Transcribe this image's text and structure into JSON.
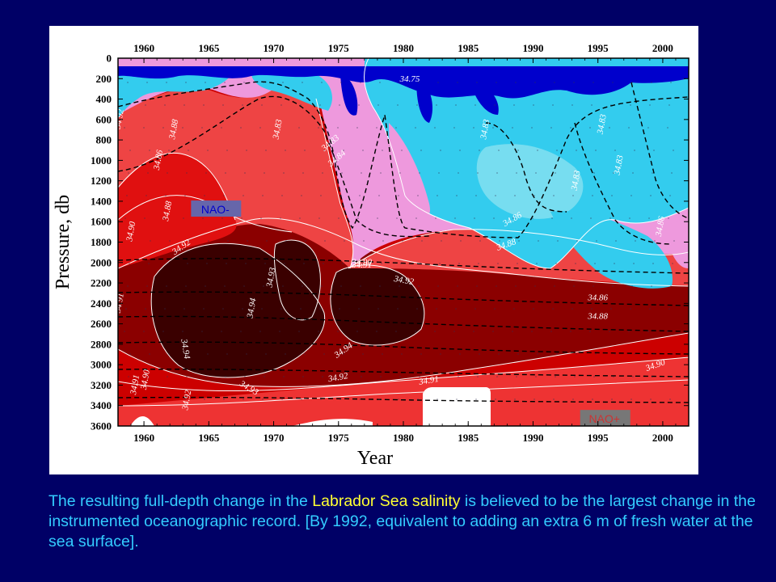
{
  "chart_data": {
    "type": "heatmap",
    "xlabel": "Year",
    "ylabel": "Pressure, db",
    "x_ticks": [
      1960,
      1965,
      1970,
      1975,
      1980,
      1985,
      1990,
      1995,
      2000
    ],
    "y_ticks": [
      0,
      200,
      400,
      600,
      800,
      1000,
      1200,
      1400,
      1600,
      1800,
      2000,
      2200,
      2400,
      2600,
      2800,
      3000,
      3200,
      3400,
      3600
    ],
    "xlim": [
      1958,
      2002
    ],
    "ylim": [
      3600,
      0
    ],
    "y_inverted": true,
    "contour_labels": [
      {
        "value": "34.92",
        "x": 1958.3,
        "y": 600,
        "rotate": -80
      },
      {
        "value": "34.88",
        "x": 1962.5,
        "y": 700,
        "rotate": -80
      },
      {
        "value": "34.86",
        "x": 1961.3,
        "y": 1000,
        "rotate": -80
      },
      {
        "value": "34.88",
        "x": 1962.0,
        "y": 1500,
        "rotate": -80
      },
      {
        "value": "34.90",
        "x": 1959.2,
        "y": 1700,
        "rotate": -80
      },
      {
        "value": "34.92",
        "x": 1963.0,
        "y": 1870,
        "rotate": -35
      },
      {
        "value": "34.93",
        "x": 1970.0,
        "y": 2150,
        "rotate": -80
      },
      {
        "value": "34.94",
        "x": 1968.5,
        "y": 2450,
        "rotate": -80
      },
      {
        "value": "34.91",
        "x": 1958.3,
        "y": 2400,
        "rotate": -80
      },
      {
        "value": "34.94",
        "x": 1963.0,
        "y": 2850,
        "rotate": 80
      },
      {
        "value": "34.94",
        "x": 1975.5,
        "y": 2880,
        "rotate": -35
      },
      {
        "value": "34.92",
        "x": 1980.0,
        "y": 2200,
        "rotate": 10
      },
      {
        "value": "34.91",
        "x": 1976.8,
        "y": 2050,
        "rotate": 0
      },
      {
        "value": "34.90",
        "x": 1976.8,
        "y": 2020,
        "rotate": 0
      },
      {
        "value": "34.93",
        "x": 1968.0,
        "y": 3250,
        "rotate": 30
      },
      {
        "value": "34.92",
        "x": 1975.0,
        "y": 3150,
        "rotate": -10
      },
      {
        "value": "34.91",
        "x": 1959.5,
        "y": 3200,
        "rotate": -80
      },
      {
        "value": "34.90",
        "x": 1960.3,
        "y": 3150,
        "rotate": -80
      },
      {
        "value": "34.92",
        "x": 1963.5,
        "y": 3350,
        "rotate": -80
      },
      {
        "value": "34.91",
        "x": 1982.0,
        "y": 3180,
        "rotate": -10
      },
      {
        "value": "34.90",
        "x": 1999.5,
        "y": 3030,
        "rotate": -20
      },
      {
        "value": "34.88",
        "x": 1988.0,
        "y": 1850,
        "rotate": -20
      },
      {
        "value": "34.86",
        "x": 1988.5,
        "y": 1600,
        "rotate": -30
      },
      {
        "value": "34.88",
        "x": 1995.0,
        "y": 2550,
        "rotate": 0
      },
      {
        "value": "34.86",
        "x": 1995.0,
        "y": 2370,
        "rotate": 0
      },
      {
        "value": "34.83",
        "x": 1993.5,
        "y": 1200,
        "rotate": -80
      },
      {
        "value": "34.83",
        "x": 1995.5,
        "y": 650,
        "rotate": -80
      },
      {
        "value": "34.83",
        "x": 1996.8,
        "y": 1050,
        "rotate": -80
      },
      {
        "value": "34.86",
        "x": 2000.0,
        "y": 1650,
        "rotate": -80
      },
      {
        "value": "34.75",
        "x": 1980.5,
        "y": 230,
        "rotate": 0
      },
      {
        "value": "34.83",
        "x": 1986.5,
        "y": 700,
        "rotate": -80
      },
      {
        "value": "34.83",
        "x": 1970.5,
        "y": 700,
        "rotate": -80
      },
      {
        "value": "34.83",
        "x": 1974.5,
        "y": 850,
        "rotate": -40
      },
      {
        "value": "34.84",
        "x": 1975.0,
        "y": 1000,
        "rotate": -40
      }
    ],
    "annotations": [
      {
        "text": "NAO-",
        "x": 1965.5,
        "y": 1480,
        "box": "#6666aa",
        "color": "#0000cc"
      },
      {
        "text": "NAO+",
        "x": 1995.5,
        "y": 3530,
        "box": "#777777",
        "color": "#cc3333"
      }
    ],
    "colors": {
      "lowest": "#0000cc",
      "low": "#33ccee",
      "mid_low": "#ee99dd",
      "mid": "#ee4444",
      "high": "#cc0000",
      "higher": "#8b0000",
      "highest": "#3a0000",
      "missing": "#ffffff"
    }
  },
  "caption": {
    "before": "The resulting full-depth change in the ",
    "highlight": "Labrador Sea salinity",
    "after": " is believed to be the largest change in the instrumented oceanographic record. [By 1992, equivalent to adding an extra 6 m of fresh water at the sea surface]."
  },
  "colors": {
    "background": "#000066",
    "caption_text": "#33ccff",
    "caption_highlight": "#ffff33"
  }
}
